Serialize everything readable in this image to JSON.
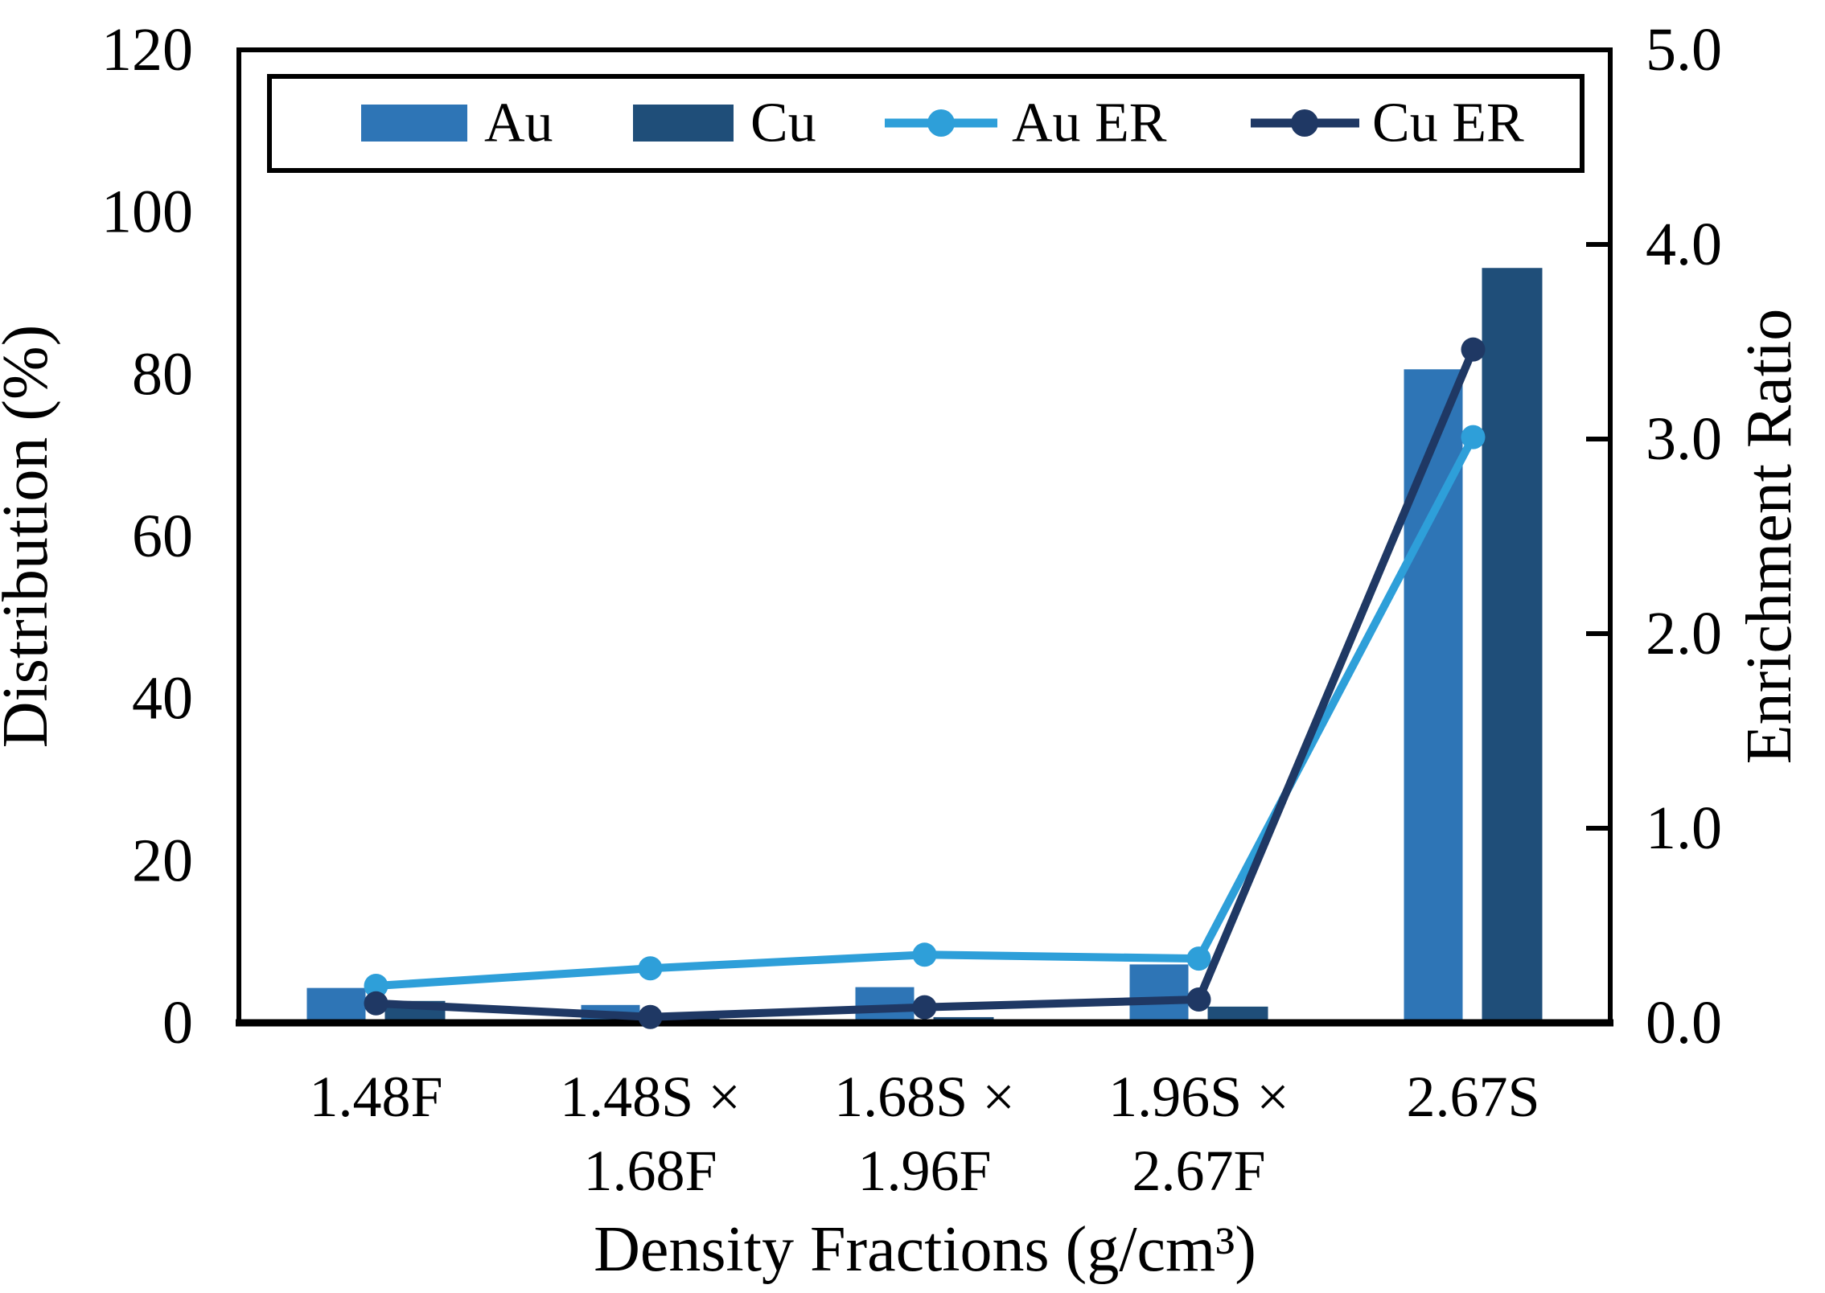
{
  "chart_data": {
    "type": "combo-bar-line",
    "title": "",
    "categories": [
      "1.48F",
      "1.48S × 1.68F",
      "1.68S × 1.96F",
      "1.96S × 2.67F",
      "2.67S"
    ],
    "x_tick_lines": [
      [
        "1.48F"
      ],
      [
        "1.48S ×",
        "1.68F"
      ],
      [
        "1.68S ×",
        "1.96F"
      ],
      [
        "1.96S ×",
        "2.67F"
      ],
      [
        "2.67S"
      ]
    ],
    "bar_series": [
      {
        "name": "Au",
        "axis": "left",
        "color": "#2E75B6",
        "values": [
          4.3,
          2.2,
          4.4,
          7.2,
          80.6
        ]
      },
      {
        "name": "Cu",
        "axis": "left",
        "color": "#1F4E79",
        "values": [
          2.7,
          0.7,
          0.7,
          2.0,
          93.1
        ]
      }
    ],
    "line_series": [
      {
        "name": "Au ER",
        "axis": "right",
        "color": "#2E9FD9",
        "values": [
          0.19,
          0.28,
          0.35,
          0.33,
          3.01
        ]
      },
      {
        "name": "Cu ER",
        "axis": "right",
        "color": "#1F3864",
        "values": [
          0.1,
          0.03,
          0.08,
          0.12,
          3.46
        ]
      }
    ],
    "left_axis": {
      "label": "Distribution (%)",
      "min": 0,
      "max": 120,
      "ticks": [
        "0",
        "20",
        "40",
        "60",
        "80",
        "100",
        "120"
      ]
    },
    "right_axis": {
      "label": "Enrichment Ratio",
      "min": 0.0,
      "max": 5.0,
      "ticks": [
        "0.0",
        "1.0",
        "2.0",
        "3.0",
        "4.0",
        "5.0"
      ]
    },
    "x_axis": {
      "label": "Density Fractions (g/cm³)"
    },
    "legend": [
      {
        "label": "Au",
        "type": "bar",
        "color": "#2E75B6"
      },
      {
        "label": "Cu",
        "type": "bar",
        "color": "#1F4E79"
      },
      {
        "label": "Au ER",
        "type": "line",
        "color": "#2E9FD9"
      },
      {
        "label": "Cu ER",
        "type": "line",
        "color": "#1F3864"
      }
    ],
    "layout_hints": {
      "grid": "off",
      "legend_position": "top-inside-framed",
      "axis_color": "#000000"
    }
  }
}
